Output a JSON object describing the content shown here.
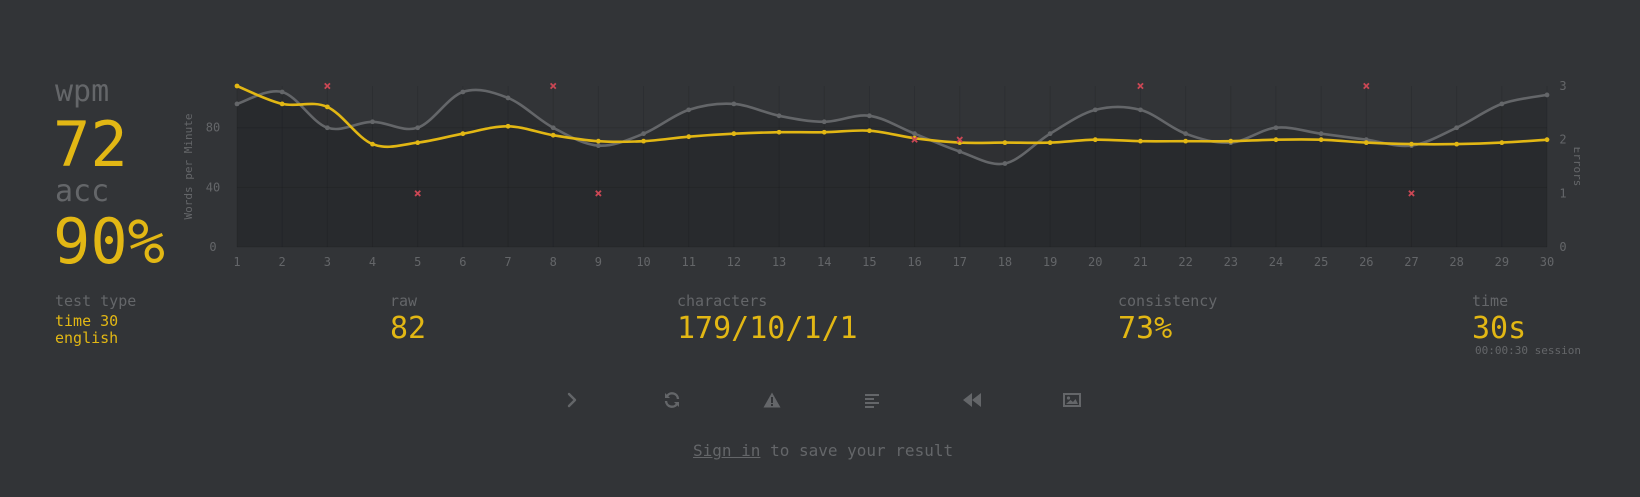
{
  "stats": {
    "wpm_label": "wpm",
    "wpm_value": "72",
    "acc_label": "acc",
    "acc_value": "90%"
  },
  "details": {
    "test_type_label": "test type",
    "test_type_line1": "time 30",
    "test_type_line2": "english",
    "raw_label": "raw",
    "raw_value": "82",
    "characters_label": "characters",
    "characters_value": "179/10/1/1",
    "consistency_label": "consistency",
    "consistency_value": "73%",
    "time_label": "time",
    "time_value": "30s",
    "time_session": "00:00:30 session"
  },
  "buttons": [
    {
      "name": "next-test-button",
      "icon": "chevron-right-icon"
    },
    {
      "name": "restart-test-button",
      "icon": "refresh-icon"
    },
    {
      "name": "report-problem-button",
      "icon": "warning-icon"
    },
    {
      "name": "show-words-history-button",
      "icon": "align-left-icon"
    },
    {
      "name": "watch-replay-button",
      "icon": "backward-icon"
    },
    {
      "name": "save-screenshot-button",
      "icon": "image-icon"
    }
  ],
  "footer": {
    "signin_link": "Sign in",
    "signin_text": " to save your result"
  },
  "colors": {
    "background": "#323437",
    "accent": "#e2b714",
    "sub": "#646669",
    "error": "#ca4754",
    "raw_line": "#646669"
  },
  "chart_data": {
    "type": "line",
    "x": [
      1,
      2,
      3,
      4,
      5,
      6,
      7,
      8,
      9,
      10,
      11,
      12,
      13,
      14,
      15,
      16,
      17,
      18,
      19,
      20,
      21,
      22,
      23,
      24,
      25,
      26,
      27,
      28,
      29,
      30
    ],
    "series": [
      {
        "name": "wpm",
        "values": [
          108,
          96,
          94,
          69,
          70,
          76,
          81,
          75,
          71,
          71,
          74,
          76,
          77,
          77,
          78,
          73,
          70,
          70,
          70,
          72,
          71,
          71,
          71,
          72,
          72,
          70,
          69,
          69,
          70,
          72
        ]
      },
      {
        "name": "raw",
        "values": [
          96,
          104,
          80,
          84,
          80,
          104,
          100,
          80,
          68,
          76,
          92,
          96,
          88,
          84,
          88,
          76,
          64,
          56,
          76,
          92,
          92,
          76,
          70,
          80,
          76,
          72,
          68,
          80,
          96,
          102
        ]
      },
      {
        "name": "errors",
        "values": [
          0,
          0,
          3,
          0,
          1,
          0,
          0,
          3,
          1,
          0,
          0,
          0,
          0,
          0,
          0,
          2,
          2,
          0,
          0,
          0,
          3,
          0,
          0,
          0,
          0,
          3,
          1,
          0,
          0,
          0
        ]
      }
    ],
    "ylabel": "Words per Minute",
    "y2label": "Errors",
    "ylim": [
      0,
      108
    ],
    "y2lim": [
      0,
      3
    ],
    "yticks": [
      0,
      40,
      80
    ],
    "y2ticks": [
      0,
      1,
      2,
      3
    ],
    "grid": true
  }
}
